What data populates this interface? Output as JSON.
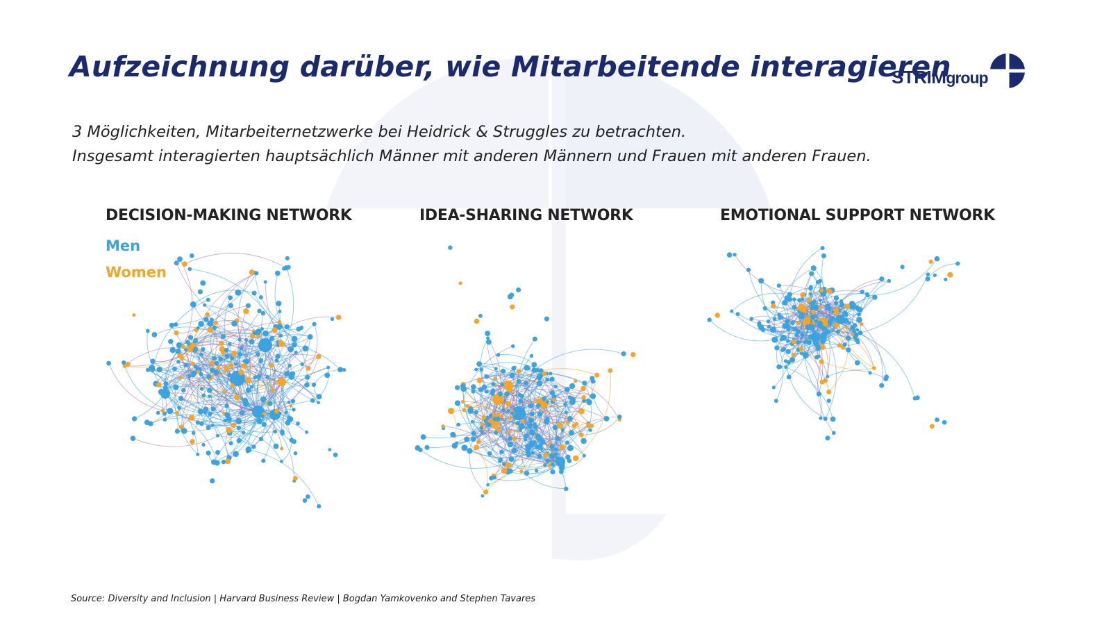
{
  "title": "Aufzeichnung darüber, wie Mitarbeitende interagieren",
  "logo": {
    "text_main": "STRIM",
    "text_sub": "group"
  },
  "subtitle": {
    "line1": "3 Möglichkeiten, Mitarbeiternetzwerke bei Heidrick & Struggles zu betrachten.",
    "line2": "Insgesamt interagierten hauptsächlich Männer mit anderen Männern und Frauen mit anderen Frauen."
  },
  "networks": [
    {
      "title": "DECISION-MAKING NETWORK"
    },
    {
      "title": "IDEA-SHARING NETWORK"
    },
    {
      "title": "EMOTIONAL SUPPORT NETWORK"
    }
  ],
  "legend": {
    "men": "Men",
    "women": "Women"
  },
  "colors": {
    "men": "#3ba3e0",
    "women": "#f4a52a",
    "edge_mixed": "#9b6fb0",
    "title": "#1a2a6c",
    "watermark": "#eef1f8"
  },
  "source": "Source: Diversity and Inclusion | Harvard Business Review | Bogdan Yamkovenko and Stephen Tavares"
}
